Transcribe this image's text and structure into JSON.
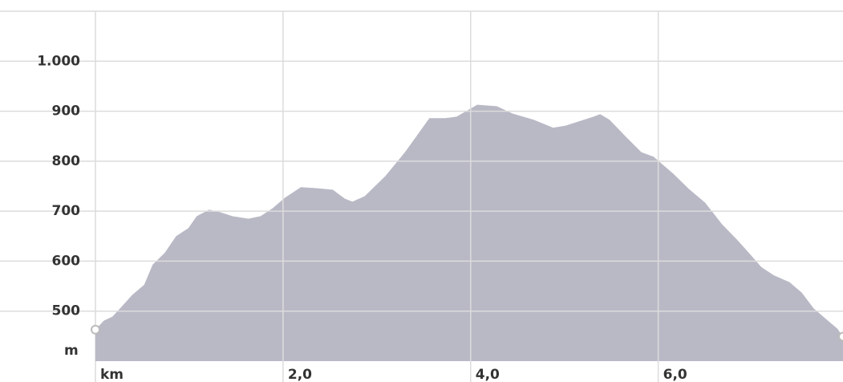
{
  "chart_data": {
    "type": "area",
    "x_label": "km",
    "y_label": "m",
    "color": "#b5b5c3",
    "x": [
      0,
      0.09,
      0.18,
      0.26,
      0.39,
      0.52,
      0.61,
      0.74,
      0.86,
      0.99,
      1.08,
      1.21,
      1.33,
      1.46,
      1.63,
      1.76,
      1.89,
      2.02,
      2.19,
      2.36,
      2.53,
      2.66,
      2.74,
      2.87,
      3.09,
      3.3,
      3.56,
      3.73,
      3.85,
      4.07,
      4.28,
      4.45,
      4.67,
      4.88,
      5.01,
      5.31,
      5.38,
      5.48,
      5.65,
      5.82,
      5.95,
      6.16,
      6.33,
      6.5,
      6.68,
      6.85,
      6.97,
      7.1,
      7.23,
      7.4,
      7.53,
      7.66,
      7.79,
      7.91,
      7.97
    ],
    "values": [
      463,
      481,
      489,
      505,
      532,
      553,
      593,
      617,
      650,
      666,
      690,
      703,
      698,
      690,
      685,
      690,
      706,
      727,
      748,
      746,
      743,
      725,
      719,
      730,
      770,
      818,
      886,
      886,
      889,
      913,
      910,
      895,
      883,
      867,
      871,
      889,
      894,
      883,
      850,
      818,
      809,
      775,
      744,
      717,
      674,
      641,
      616,
      588,
      572,
      558,
      537,
      505,
      484,
      465,
      449
    ],
    "xlim": [
      0,
      7.97
    ],
    "ylim": [
      400,
      1100
    ],
    "xticks": [
      {
        "value": 2,
        "label": "2,0"
      },
      {
        "value": 4,
        "label": "4,0"
      },
      {
        "value": 6,
        "label": "6,0"
      }
    ],
    "yticks": [
      500,
      600,
      700,
      800,
      900,
      {
        "value": 1000,
        "label": "1.000"
      }
    ],
    "grid": true
  }
}
